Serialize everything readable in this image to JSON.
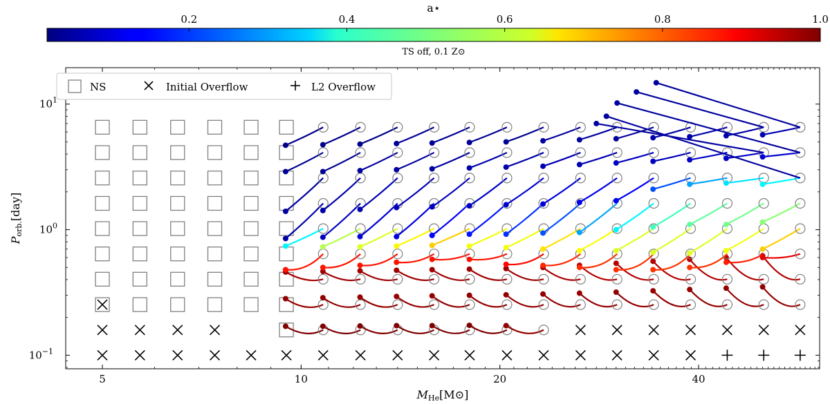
{
  "chart_data": {
    "type": "scatter",
    "title": "TS off, 0.1 Z⊙",
    "xlabel_main": "M",
    "xlabel_sub": "He",
    "xlabel_unit": "[M⊙]",
    "ylabel_main": "P",
    "ylabel_sub": "orb.",
    "ylabel_unit": "[day]",
    "x_scale": "log",
    "y_scale": "log",
    "xlim": [
      4.4,
      61
    ],
    "ylim": [
      0.078,
      19.5
    ],
    "x_ticks": [
      {
        "value": 5,
        "label": "5"
      },
      {
        "value": 10,
        "label": "10"
      },
      {
        "value": 20,
        "label": "20"
      },
      {
        "value": 40,
        "label": "40"
      }
    ],
    "y_ticks": [
      {
        "value": 0.1,
        "base": "10",
        "exp": "−1"
      },
      {
        "value": 1,
        "base": "10",
        "exp": "0"
      },
      {
        "value": 10,
        "base": "10",
        "exp": "1"
      }
    ],
    "colorbar": {
      "label": "a⋆",
      "range": [
        0.02,
        1.0
      ],
      "colormap": "jet",
      "ticks": [
        {
          "value": 0.2,
          "label": "0.2"
        },
        {
          "value": 0.4,
          "label": "0.4"
        },
        {
          "value": 0.6,
          "label": "0.6"
        },
        {
          "value": 0.8,
          "label": "0.8"
        },
        {
          "value": 1.0,
          "label": "1.0"
        }
      ]
    },
    "legend": {
      "placement": "upper-left",
      "entries": [
        {
          "marker": "square",
          "label": "NS"
        },
        {
          "marker": "x",
          "label": "Initial Overflow"
        },
        {
          "marker": "plus",
          "label": "L2 Overflow"
        }
      ]
    },
    "grid": false,
    "masses": [
      5,
      5.7,
      6.5,
      7.4,
      8.4,
      9.5,
      10.8,
      12.3,
      14,
      15.9,
      18,
      20.5,
      23.3,
      26.5,
      30.1,
      34.2,
      38.9,
      44.2,
      50.2,
      57
    ],
    "initial_periods": [
      0.1,
      0.159,
      0.253,
      0.403,
      0.641,
      1.02,
      1.62,
      2.58,
      4.11,
      6.54
    ],
    "ns_points": [
      [
        5,
        0.253
      ],
      [
        5,
        0.403
      ],
      [
        5,
        0.641
      ],
      [
        5,
        1.02
      ],
      [
        5,
        1.62
      ],
      [
        5,
        2.58
      ],
      [
        5,
        4.11
      ],
      [
        5,
        6.54
      ],
      [
        5.7,
        0.253
      ],
      [
        5.7,
        0.403
      ],
      [
        5.7,
        0.641
      ],
      [
        5.7,
        1.02
      ],
      [
        5.7,
        1.62
      ],
      [
        5.7,
        2.58
      ],
      [
        5.7,
        4.11
      ],
      [
        5.7,
        6.54
      ],
      [
        6.5,
        0.253
      ],
      [
        6.5,
        0.403
      ],
      [
        6.5,
        0.641
      ],
      [
        6.5,
        1.02
      ],
      [
        6.5,
        1.62
      ],
      [
        6.5,
        2.58
      ],
      [
        6.5,
        4.11
      ],
      [
        6.5,
        6.54
      ],
      [
        7.4,
        0.253
      ],
      [
        7.4,
        0.403
      ],
      [
        7.4,
        0.641
      ],
      [
        7.4,
        1.02
      ],
      [
        7.4,
        1.62
      ],
      [
        7.4,
        2.58
      ],
      [
        7.4,
        4.11
      ],
      [
        7.4,
        6.54
      ],
      [
        8.4,
        0.253
      ],
      [
        8.4,
        0.403
      ],
      [
        8.4,
        0.641
      ],
      [
        8.4,
        1.02
      ],
      [
        8.4,
        1.62
      ],
      [
        8.4,
        2.58
      ],
      [
        8.4,
        4.11
      ],
      [
        8.4,
        6.54
      ],
      [
        9.5,
        0.159
      ],
      [
        9.5,
        0.253
      ],
      [
        9.5,
        0.403
      ],
      [
        9.5,
        0.641
      ],
      [
        9.5,
        1.02
      ],
      [
        9.5,
        1.62
      ],
      [
        9.5,
        2.58
      ],
      [
        9.5,
        4.11
      ],
      [
        9.5,
        6.54
      ]
    ],
    "initial_overflow_points": [
      [
        5,
        0.1
      ],
      [
        5.7,
        0.1
      ],
      [
        6.5,
        0.1
      ],
      [
        7.4,
        0.1
      ],
      [
        8.4,
        0.1
      ],
      [
        9.5,
        0.1
      ],
      [
        10.8,
        0.1
      ],
      [
        12.3,
        0.1
      ],
      [
        14,
        0.1
      ],
      [
        15.9,
        0.1
      ],
      [
        18,
        0.1
      ],
      [
        20.5,
        0.1
      ],
      [
        23.3,
        0.1
      ],
      [
        26.5,
        0.1
      ],
      [
        30.1,
        0.1
      ],
      [
        34.2,
        0.1
      ],
      [
        38.9,
        0.1
      ],
      [
        5,
        0.159
      ],
      [
        5.7,
        0.159
      ],
      [
        6.5,
        0.159
      ],
      [
        7.4,
        0.159
      ],
      [
        26.5,
        0.159
      ],
      [
        30.1,
        0.159
      ],
      [
        34.2,
        0.159
      ],
      [
        38.9,
        0.159
      ],
      [
        44.2,
        0.159
      ],
      [
        50.2,
        0.159
      ],
      [
        57,
        0.159
      ],
      [
        5,
        0.253
      ]
    ],
    "l2_overflow_points": [
      [
        44.2,
        0.1
      ],
      [
        50.2,
        0.1
      ],
      [
        57,
        0.1
      ]
    ],
    "series": [
      {
        "rows": [
          {
            "p0": 0.159,
            "masses": [
              10.8,
              12.3,
              14,
              15.9,
              18,
              20.5,
              23.3
            ],
            "a": [
              1.0,
              1.0,
              1.0,
              1.0,
              1.0,
              1.0,
              0.98
            ],
            "final": [
              0.17,
              0.17,
              0.171,
              0.172,
              0.172,
              0.173,
              0.172
            ],
            "curve": -0.7
          },
          {
            "p0": 0.253,
            "masses": [
              10.8,
              12.3,
              14,
              15.9,
              18,
              20.5,
              23.3,
              26.5,
              30.1,
              34.2,
              38.9,
              44.2,
              50.2,
              57
            ],
            "a": [
              0.98,
              0.98,
              0.98,
              0.98,
              0.98,
              0.98,
              0.98,
              0.98,
              0.98,
              0.98,
              0.98,
              0.98,
              0.98,
              0.98
            ],
            "final": [
              0.282,
              0.287,
              0.29,
              0.294,
              0.297,
              0.3,
              0.303,
              0.307,
              0.312,
              0.318,
              0.326,
              0.334,
              0.342,
              0.35
            ],
            "curve": -0.6
          },
          {
            "p0": 0.403,
            "masses": [
              10.8,
              12.3,
              14,
              15.9,
              18,
              20.5,
              23.3,
              26.5,
              30.1,
              34.2,
              38.9,
              44.2,
              50.2,
              57
            ],
            "a": [
              0.96,
              0.97,
              0.97,
              0.97,
              0.97,
              0.97,
              0.97,
              0.96,
              0.95,
              0.95,
              0.95,
              0.95,
              0.95,
              0.95
            ],
            "final": [
              0.46,
              0.465,
              0.47,
              0.475,
              0.48,
              0.485,
              0.49,
              0.5,
              0.52,
              0.54,
              0.56,
              0.58,
              0.6,
              0.62
            ],
            "curve": -0.35
          },
          {
            "p0": 0.641,
            "masses": [
              10.8,
              12.3,
              14,
              15.9,
              18,
              20.5,
              23.3,
              26.5,
              30.1,
              34.2,
              38.9,
              44.2,
              50.2,
              57
            ],
            "a": [
              0.86,
              0.86,
              0.86,
              0.86,
              0.86,
              0.86,
              0.87,
              0.84,
              0.83,
              0.83,
              0.83,
              0.83,
              0.85,
              0.9
            ],
            "final": [
              0.48,
              0.5,
              0.52,
              0.55,
              0.58,
              0.58,
              0.53,
              0.52,
              0.5,
              0.48,
              0.48,
              0.5,
              0.55,
              0.6
            ],
            "curve": -0.15
          },
          {
            "p0": 1.02,
            "masses": [
              10.8,
              12.3,
              14,
              15.9,
              18,
              20.5,
              23.3,
              26.5,
              30.1,
              34.2,
              38.9,
              44.2,
              50.2,
              57
            ],
            "a": [
              0.38,
              0.56,
              0.6,
              0.64,
              0.68,
              0.62,
              0.62,
              0.66,
              0.63,
              0.6,
              0.6,
              0.6,
              0.62,
              0.68
            ],
            "final": [
              0.74,
              0.73,
              0.73,
              0.74,
              0.75,
              0.74,
              0.72,
              0.7,
              0.68,
              0.68,
              0.66,
              0.65,
              0.68,
              0.7
            ],
            "curve": 0.0
          },
          {
            "p0": 1.62,
            "masses": [
              10.8,
              12.3,
              14,
              15.9,
              18,
              20.5,
              23.3,
              26.5,
              30.1,
              34.2,
              38.9,
              44.2,
              50.2,
              57
            ],
            "a": [
              0.06,
              0.08,
              0.1,
              0.11,
              0.14,
              0.16,
              0.19,
              0.22,
              0.3,
              0.38,
              0.45,
              0.48,
              0.5,
              0.52
            ],
            "final": [
              0.85,
              0.87,
              0.88,
              0.88,
              0.9,
              0.92,
              0.92,
              0.94,
              0.95,
              1.0,
              1.05,
              1.1,
              1.1,
              1.15
            ],
            "curve": 0.0
          },
          {
            "p0": 2.58,
            "masses": [
              10.8,
              12.3,
              14,
              15.9,
              18,
              20.5,
              23.3,
              26.5,
              30.1,
              34.2,
              38.9,
              44.2,
              50.2,
              57
            ],
            "a": [
              0.05,
              0.06,
              0.07,
              0.07,
              0.08,
              0.09,
              0.1,
              0.11,
              0.12,
              0.13,
              0.22,
              0.3,
              0.36,
              0.38
            ],
            "final": [
              1.4,
              1.42,
              1.45,
              1.5,
              1.52,
              1.55,
              1.58,
              1.6,
              1.65,
              1.7,
              2.1,
              2.3,
              2.35,
              2.3
            ],
            "curve": 0.0
          },
          {
            "p0": 4.11,
            "masses": [
              10.8,
              12.3,
              14,
              15.9,
              18,
              20.5,
              23.3,
              26.5,
              30.1,
              34.2,
              38.9,
              44.2,
              50.2,
              57
            ],
            "a": [
              0.04,
              0.04,
              0.05,
              0.05,
              0.05,
              0.06,
              0.06,
              0.07,
              0.07,
              0.08,
              0.08,
              0.09,
              0.09,
              0.1
            ],
            "final": [
              2.9,
              2.9,
              2.95,
              3.0,
              3.05,
              3.1,
              3.15,
              3.2,
              3.3,
              3.4,
              3.5,
              3.6,
              3.7,
              3.8
            ],
            "curve": 0.0
          },
          {
            "p0": 6.54,
            "masses": [
              10.8,
              12.3,
              14,
              15.9,
              18,
              20.5,
              23.3,
              26.5,
              30.1,
              34.2,
              38.9,
              44.2,
              50.2,
              57
            ],
            "a": [
              0.03,
              0.03,
              0.03,
              0.04,
              0.04,
              0.04,
              0.04,
              0.05,
              0.05,
              0.05,
              0.06,
              0.06,
              0.06,
              0.07
            ],
            "final": [
              4.7,
              4.75,
              4.8,
              4.85,
              4.9,
              4.95,
              5.0,
              5.1,
              5.2,
              5.3,
              5.4,
              5.5,
              5.6,
              5.7
            ],
            "curve": 0.0
          },
          {
            "p0": 6.54,
            "masses": [
              30.1,
              34.2,
              38.9,
              44.2,
              50.2,
              57
            ],
            "a": [
              0.05,
              0.05,
              0.06,
              0.06,
              0.06,
              0.07
            ],
            "final": [
              7.3,
              7.6,
              8.0,
              8.3,
              8.7,
              9.0
            ],
            "curve": 0.0
          },
          {
            "p0": 6.54,
            "masses": [
              34.2,
              38.9,
              44.2,
              50.2,
              57
            ],
            "a": [
              0.05,
              0.06,
              0.06,
              0.06,
              0.07
            ],
            "final": [
              10.2,
              10.6,
              11.0,
              11.4,
              11.8
            ],
            "curve": 0.0
          },
          {
            "p0": 6.54,
            "masses": [
              38.9,
              44.2,
              50.2,
              57
            ],
            "a": [
              0.06,
              0.06,
              0.06,
              0.07
            ],
            "final": [
              12.5,
              13.2,
              13.8,
              14.5
            ],
            "curve": 0.0
          },
          {
            "p0": 6.54,
            "masses": [
              50.2,
              57
            ],
            "a": [
              0.06,
              0.07
            ],
            "final": [
              16.2,
              17.2
            ],
            "curve": 0.0
          }
        ]
      }
    ]
  }
}
